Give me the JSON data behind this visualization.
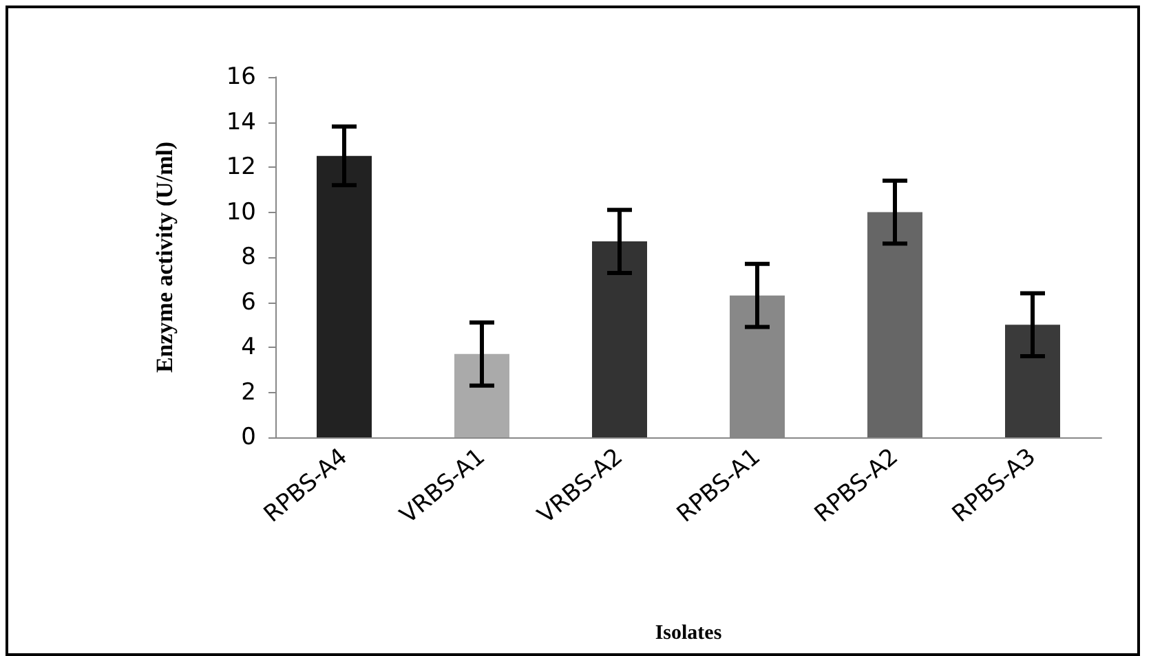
{
  "chart_data": {
    "type": "bar",
    "xlabel": "Isolates",
    "ylabel": "Enzyme activity (U/ml)",
    "categories": [
      "RPBS-A4",
      "VRBS-A1",
      "VRBS-A2",
      "RPBS-A1",
      "RPBS-A2",
      "RPBS-A3"
    ],
    "values": [
      12.5,
      3.7,
      8.7,
      6.3,
      10,
      5
    ],
    "errors": [
      1.3,
      1.4,
      1.4,
      1.4,
      1.4,
      1.4
    ],
    "colors": [
      "#222222",
      "#aaaaaa",
      "#333333",
      "#888888",
      "#666666",
      "#3a3a3a"
    ],
    "ylim": [
      0,
      16
    ],
    "yticks": [
      0,
      2,
      4,
      6,
      8,
      10,
      12,
      14,
      16
    ]
  }
}
